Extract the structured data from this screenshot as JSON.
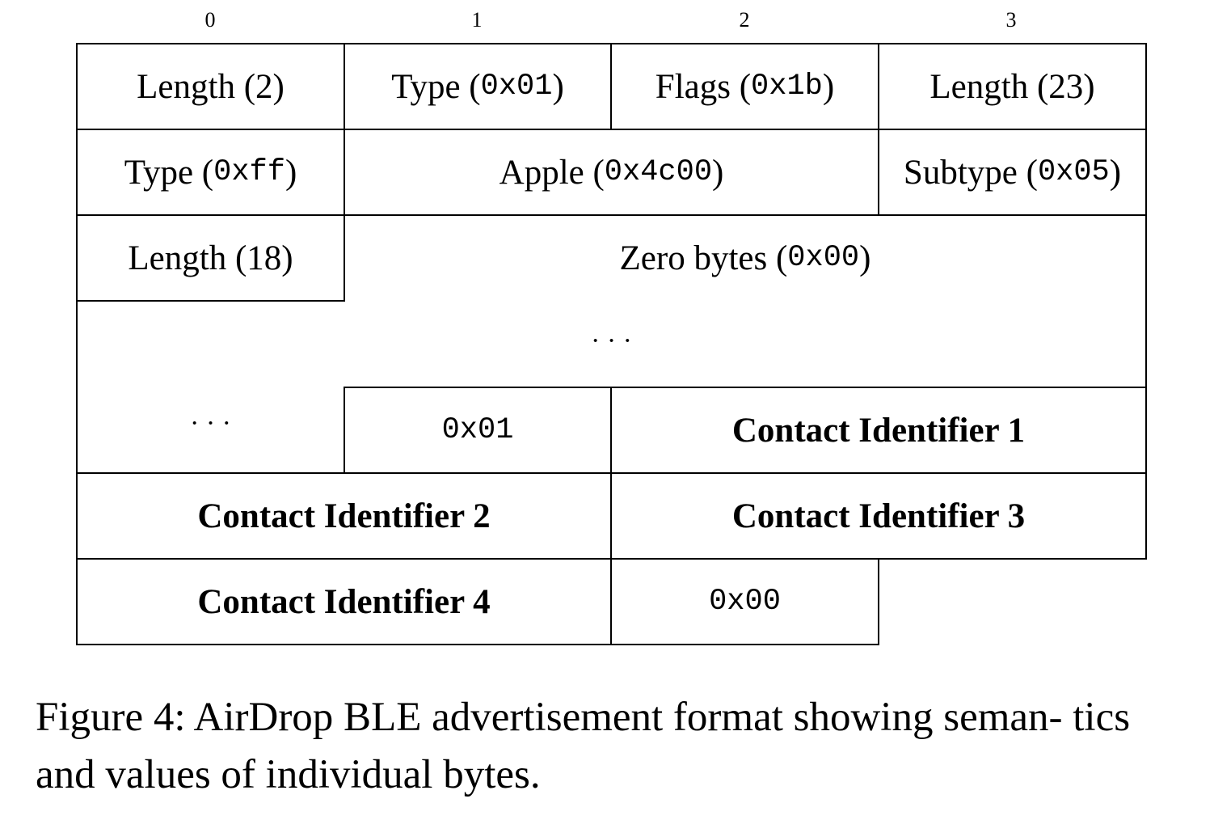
{
  "column_numbers": [
    "0",
    "1",
    "2",
    "3"
  ],
  "cells": {
    "length_2": {
      "label": "Length (2)"
    },
    "type_01": {
      "label": "Type (",
      "code": "0x01",
      "close": ")"
    },
    "flags_1b": {
      "label": "Flags (",
      "code": "0x1b",
      "close": ")"
    },
    "length_23": {
      "label": "Length (23)"
    },
    "type_ff": {
      "label": "Type (",
      "code": "0xff",
      "close": ")"
    },
    "apple": {
      "label": "Apple (",
      "code": "0x4c00",
      "close": ")"
    },
    "subtype": {
      "label": "Subtype (",
      "code": "0x05",
      "close": ")"
    },
    "length_18": {
      "label": "Length (18)"
    },
    "zero_bytes": {
      "label": "Zero bytes (",
      "code": "0x00",
      "close": ")"
    },
    "ellipsis_full": {
      "label": "· · ·"
    },
    "ellipsis_left": {
      "label": "· · ·"
    },
    "byte_01": {
      "code": "0x01"
    },
    "contact_1": {
      "label": "Contact Identifier 1"
    },
    "contact_2": {
      "label": "Contact Identifier 2"
    },
    "contact_3": {
      "label": "Contact Identifier 3"
    },
    "contact_4": {
      "label": "Contact Identifier 4"
    },
    "byte_00": {
      "code": "0x00"
    }
  },
  "caption": "Figure 4: AirDrop BLE advertisement format showing seman- tics and values of individual bytes."
}
